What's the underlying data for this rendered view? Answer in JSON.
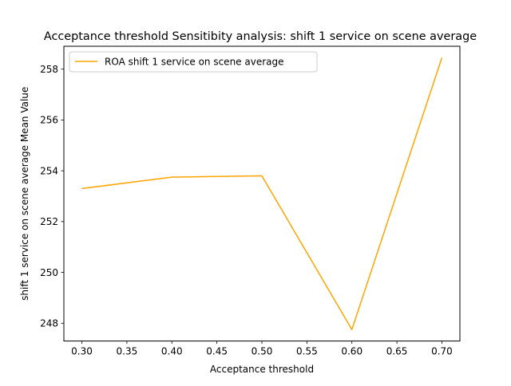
{
  "chart_data": {
    "type": "line",
    "title": "Acceptance threshold Sensitibity analysis: shift 1 service on scene average",
    "xlabel": "Acceptance threshold",
    "ylabel": "shift 1 service on scene average Mean Value",
    "x": [
      0.3,
      0.4,
      0.5,
      0.6,
      0.7
    ],
    "series": [
      {
        "name": "ROA shift 1 service on scene average",
        "values": [
          253.3,
          253.75,
          253.8,
          247.75,
          258.45
        ],
        "color": "#ffa500"
      }
    ],
    "xlim": [
      0.28,
      0.72
    ],
    "ylim": [
      247.3,
      258.9
    ],
    "xticks": [
      0.3,
      0.35,
      0.4,
      0.45,
      0.5,
      0.55,
      0.6,
      0.65,
      0.7
    ],
    "xtick_labels": [
      "0.30",
      "0.35",
      "0.40",
      "0.45",
      "0.50",
      "0.55",
      "0.60",
      "0.65",
      "0.70"
    ],
    "yticks": [
      248,
      250,
      252,
      254,
      256,
      258
    ],
    "ytick_labels": [
      "248",
      "250",
      "252",
      "254",
      "256",
      "258"
    ],
    "grid": false,
    "legend": "upper left"
  }
}
